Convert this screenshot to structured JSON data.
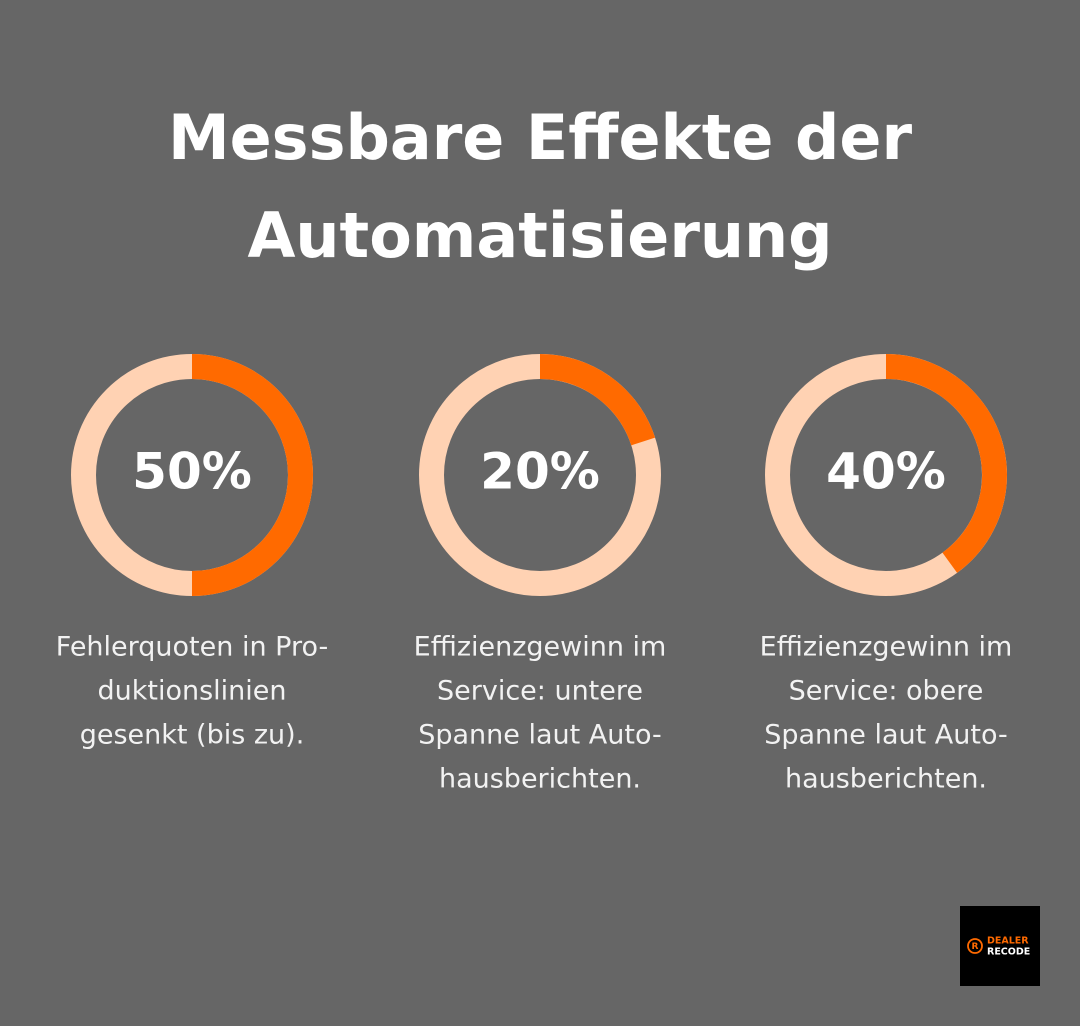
{
  "title": [
    "Messbare Effekte der",
    "Automatisierung"
  ],
  "chart_data": [
    {
      "type": "donut",
      "values": [
        50
      ],
      "value_labels": [
        "50%"
      ],
      "ylim": [
        0,
        100
      ],
      "color": "#ff6a00",
      "track_color": "#ffd2b3",
      "caption": [
        "Fehlerquoten in Pro-",
        "duktionslinien",
        "gesenkt (bis zu)."
      ]
    },
    {
      "type": "donut",
      "values": [
        20
      ],
      "value_labels": [
        "20%"
      ],
      "ylim": [
        0,
        100
      ],
      "color": "#ff6a00",
      "track_color": "#ffd2b3",
      "caption": [
        "Effizienzgewinn im",
        "Service: untere",
        "Spanne laut Auto-",
        "hausberichten."
      ]
    },
    {
      "type": "donut",
      "values": [
        40
      ],
      "value_labels": [
        "40%"
      ],
      "ylim": [
        0,
        100
      ],
      "color": "#ff6a00",
      "track_color": "#ffd2b3",
      "caption": [
        "Effizienzgewinn im",
        "Service: obere",
        "Spanne laut Auto-",
        "hausberichten."
      ]
    }
  ],
  "logo": {
    "mark": "R",
    "lines": [
      "DEALER",
      "RECODE"
    ]
  }
}
